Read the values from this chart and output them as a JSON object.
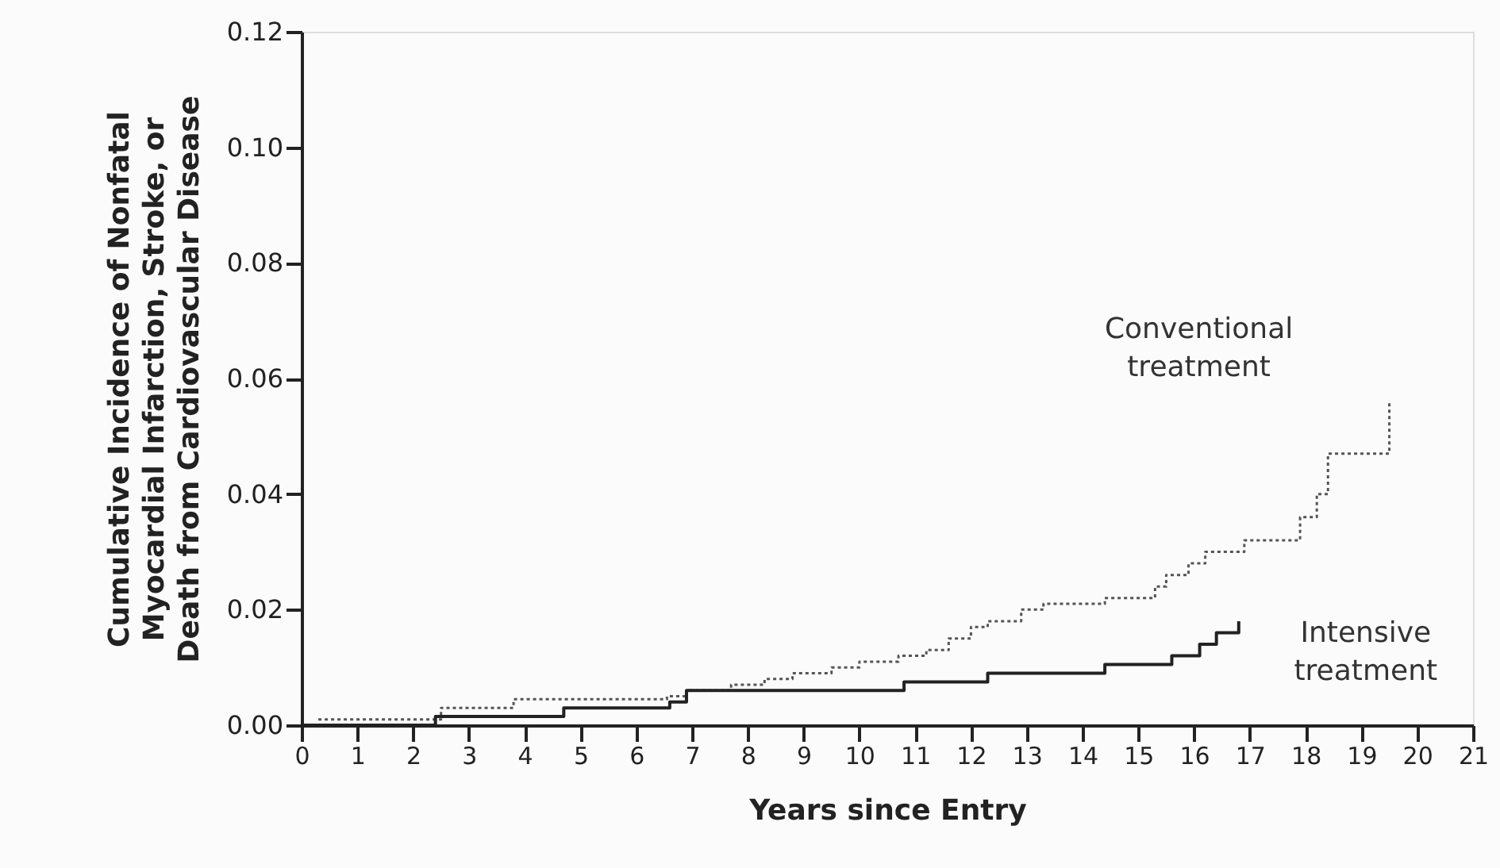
{
  "chart_data": {
    "type": "step",
    "xlabel": "Years since Entry",
    "ylabel": "Cumulative Incidence of Nonfatal\nMyocardial Infarction, Stroke, or\nDeath from Cardiovascular Disease",
    "xlim": [
      0,
      21
    ],
    "xticks": [
      0,
      1,
      2,
      3,
      4,
      5,
      6,
      7,
      8,
      9,
      10,
      11,
      12,
      13,
      14,
      15,
      16,
      17,
      18,
      19,
      20,
      21
    ],
    "ylim": [
      0,
      0.12
    ],
    "yticks": [
      {
        "value": 0,
        "label": "0.00"
      },
      {
        "value": 0.02,
        "label": "0.02"
      },
      {
        "value": 0.04,
        "label": "0.04"
      },
      {
        "value": 0.06,
        "label": "0.06"
      },
      {
        "value": 0.08,
        "label": "0.08"
      },
      {
        "value": 0.1,
        "label": "0.10"
      },
      {
        "value": 0.12,
        "label": "0.12"
      }
    ],
    "grid": false,
    "marker": "none",
    "series": [
      {
        "name": "Conventional\ntreatment",
        "color": "#555555",
        "line_style": "dotted",
        "x": [
          0.3,
          2.5,
          3.8,
          6.55,
          6.9,
          7.7,
          8.3,
          8.8,
          9.5,
          10.0,
          10.7,
          11.2,
          11.6,
          12.0,
          12.3,
          12.9,
          13.3,
          14.4,
          15.3,
          15.5,
          15.9,
          16.2,
          16.9,
          17.9,
          18.2,
          18.4,
          19.5,
          19.5
        ],
        "values": [
          0.001,
          0.003,
          0.0045,
          0.005,
          0.006,
          0.007,
          0.008,
          0.009,
          0.01,
          0.011,
          0.012,
          0.013,
          0.015,
          0.017,
          0.018,
          0.02,
          0.021,
          0.022,
          0.024,
          0.026,
          0.028,
          0.03,
          0.032,
          0.036,
          0.04,
          0.047,
          0.047,
          0.056
        ]
      },
      {
        "name": "Intensive\ntreatment",
        "color": "#222222",
        "line_style": "solid",
        "x": [
          0.0,
          2.4,
          4.7,
          6.6,
          6.9,
          10.8,
          12.3,
          14.4,
          15.6,
          16.1,
          16.4,
          16.8,
          16.8
        ],
        "values": [
          0.0,
          0.0015,
          0.003,
          0.004,
          0.006,
          0.0075,
          0.009,
          0.0105,
          0.012,
          0.014,
          0.016,
          0.016,
          0.018
        ]
      }
    ]
  }
}
